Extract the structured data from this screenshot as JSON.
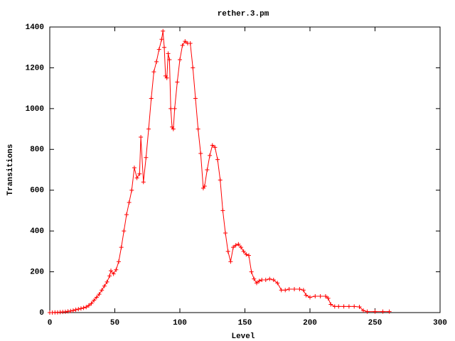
{
  "chart_data": {
    "type": "line",
    "title": "rether.3.pm",
    "x_label": "Level",
    "y_label": "Transitions",
    "x": [
      0,
      2,
      4,
      6,
      8,
      10,
      12,
      14,
      16,
      18,
      20,
      22,
      24,
      26,
      28,
      30,
      32,
      34,
      36,
      38,
      40,
      42,
      44,
      46,
      47,
      49,
      51,
      53,
      55,
      57,
      59,
      61,
      63,
      65,
      67,
      69,
      70,
      72,
      74,
      76,
      78,
      80,
      82,
      84,
      86,
      87,
      88,
      89,
      90,
      91,
      92,
      93,
      94,
      95,
      96,
      98,
      100,
      102,
      104,
      106,
      108,
      110,
      112,
      114,
      116,
      118,
      119,
      121,
      123,
      125,
      127,
      129,
      131,
      133,
      135,
      137,
      139,
      141,
      143,
      145,
      147,
      149,
      151,
      153,
      155,
      157,
      159,
      161,
      163,
      166,
      169,
      172,
      175,
      178,
      181,
      184,
      188,
      192,
      195,
      197,
      200,
      204,
      208,
      212,
      214,
      216,
      219,
      222,
      226,
      230,
      234,
      238,
      241,
      244,
      250,
      256,
      261
    ],
    "series": [
      {
        "name": "rether.3.pm",
        "color": "#ff0000",
        "values": [
          0,
          0,
          1,
          1,
          2,
          3,
          4,
          6,
          8,
          10,
          14,
          17,
          20,
          23,
          27,
          35,
          45,
          60,
          75,
          90,
          110,
          130,
          150,
          180,
          205,
          190,
          210,
          250,
          320,
          400,
          480,
          540,
          600,
          710,
          660,
          680,
          860,
          640,
          760,
          900,
          1050,
          1180,
          1230,
          1290,
          1340,
          1380,
          1300,
          1160,
          1150,
          1270,
          1240,
          1000,
          910,
          900,
          1000,
          1130,
          1240,
          1310,
          1330,
          1320,
          1320,
          1200,
          1050,
          900,
          780,
          610,
          620,
          700,
          770,
          820,
          810,
          750,
          650,
          500,
          390,
          300,
          250,
          320,
          330,
          335,
          320,
          300,
          285,
          280,
          200,
          165,
          145,
          155,
          160,
          160,
          165,
          160,
          145,
          110,
          110,
          115,
          115,
          115,
          110,
          85,
          75,
          80,
          80,
          80,
          70,
          40,
          30,
          30,
          30,
          30,
          30,
          28,
          10,
          5,
          5,
          5,
          5
        ]
      }
    ],
    "xlim": [
      0,
      300
    ],
    "ylim": [
      0,
      1400
    ],
    "xticks": [
      0,
      50,
      100,
      150,
      200,
      250,
      300
    ],
    "yticks": [
      0,
      200,
      400,
      600,
      800,
      1000,
      1200,
      1400
    ]
  }
}
